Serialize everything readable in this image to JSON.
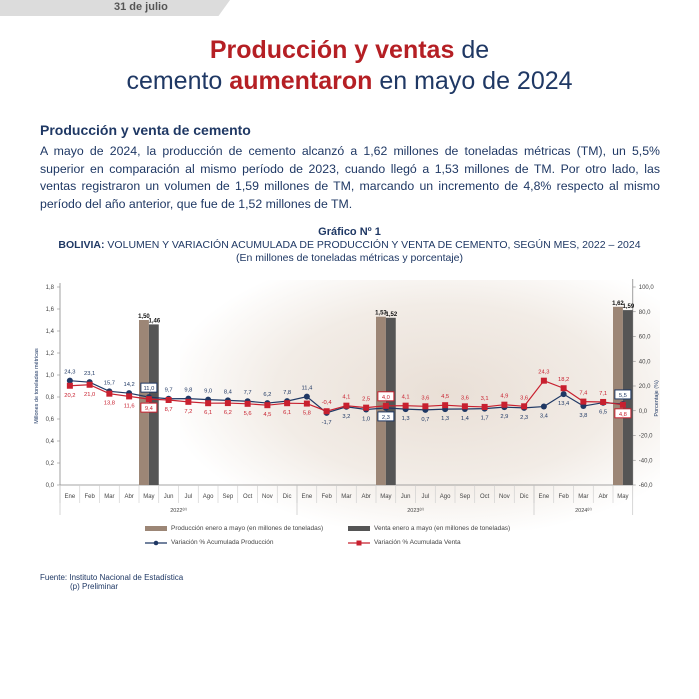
{
  "header": {
    "date": "31 de julio"
  },
  "headline": {
    "l1_red": "Producción y ventas",
    "l1_rest": " de",
    "l2_a": "cemento ",
    "l2_red": "aumentaron",
    "l2_b": " en mayo de 2024"
  },
  "section_title": "Producción y venta de cemento",
  "body": "A mayo de 2024, la producción de cemento alcanzó a 1,62 millones de toneladas métricas (TM), un 5,5% superior en comparación al mismo período de 2023, cuando llegó a 1,53 millones de TM. Por otro lado, las ventas registraron un volumen de 1,59 millones de TM, marcando un incremento de 4,8% respecto al mismo período del año anterior, que fue de 1,52 millones de TM.",
  "colors": {
    "production": "#1f3864",
    "sales": "#c8202f",
    "bar_prod": "#9c8676",
    "bar_sales": "#555555"
  },
  "chart_data": {
    "type": "bar+line",
    "label": "Gráfico Nº 1",
    "title_bold": "BOLIVIA:",
    "title": " VOLUMEN Y VARIACIÓN ACUMULADA DE PRODUCCIÓN Y VENTA DE CEMENTO, SEGÚN MES, 2022 – 2024",
    "subtitle": "(En millones de toneladas métricas y porcentaje)",
    "ylabel_left": "Millones de toneladas métricas",
    "ylabel_right": "Porcentaje (%)",
    "ylim_left": [
      0,
      1.8
    ],
    "ylim_right": [
      -60,
      100
    ],
    "left_ticks": [
      "0,0",
      "0,2",
      "0,4",
      "0,6",
      "0,8",
      "1,0",
      "1,2",
      "1,4",
      "1,6",
      "1,8"
    ],
    "right_ticks": [
      "-60,0",
      "-40,0",
      "-20,0",
      "0,0",
      "20,0",
      "40,0",
      "60,0",
      "80,0",
      "100,0"
    ],
    "months": [
      "Ene",
      "Feb",
      "Mar",
      "Abr",
      "May",
      "Jun",
      "Jul",
      "Ago",
      "Sep",
      "Oct",
      "Nov",
      "Dic",
      "Ene",
      "Feb",
      "Mar",
      "Abr",
      "May",
      "Jun",
      "Jul",
      "Ago",
      "Sep",
      "Oct",
      "Nov",
      "Dic",
      "Ene",
      "Feb",
      "Mar",
      "Abr",
      "May"
    ],
    "years": [
      {
        "label": "2022",
        "sup": "(p)"
      },
      {
        "label": "2023",
        "sup": "(p)"
      },
      {
        "label": "2024",
        "sup": "(p)"
      }
    ],
    "bars": [
      {
        "index": 4,
        "production": 1.5,
        "sales": 1.46,
        "production_label": "1,50",
        "sales_label": "1,46"
      },
      {
        "index": 16,
        "production": 1.53,
        "sales": 1.52,
        "production_label": "1,53",
        "sales_label": "1,52"
      },
      {
        "index": 28,
        "production": 1.62,
        "sales": 1.59,
        "production_label": "1,62",
        "sales_label": "1,59"
      }
    ],
    "series": [
      {
        "name": "Variación % Acumulada Producción",
        "values": [
          24.3,
          23.1,
          15.7,
          14.2,
          11.0,
          9.7,
          9.8,
          9.0,
          8.4,
          7.7,
          6.2,
          7.8,
          11.4,
          -1.7,
          3.2,
          1.0,
          2.3,
          1.3,
          0.7,
          1.3,
          1.4,
          1.7,
          2.9,
          2.3,
          3.4,
          13.4,
          3.8,
          6.5,
          5.5
        ]
      },
      {
        "name": "Variación % Acumulada Venta",
        "values": [
          20.2,
          21.0,
          13.8,
          11.6,
          9.4,
          8.7,
          7.2,
          6.1,
          6.2,
          5.6,
          4.5,
          6.1,
          5.8,
          -0.4,
          4.1,
          2.5,
          4.0,
          4.1,
          3.6,
          4.5,
          3.6,
          3.1,
          4.9,
          3.6,
          24.3,
          18.2,
          7.4,
          7.1,
          4.8
        ]
      }
    ],
    "legend": {
      "bar_prod": "Producción enero a mayo (en millones de toneladas)",
      "bar_sales": "Venta enero a mayo (en millones de toneladas)",
      "line_prod": "Variación % Acumulada Producción",
      "line_sales": "Variación % Acumulada Venta"
    }
  },
  "source": {
    "line1": "Fuente: Instituto Nacional de Estadística",
    "line2": "(p) Preliminar"
  }
}
